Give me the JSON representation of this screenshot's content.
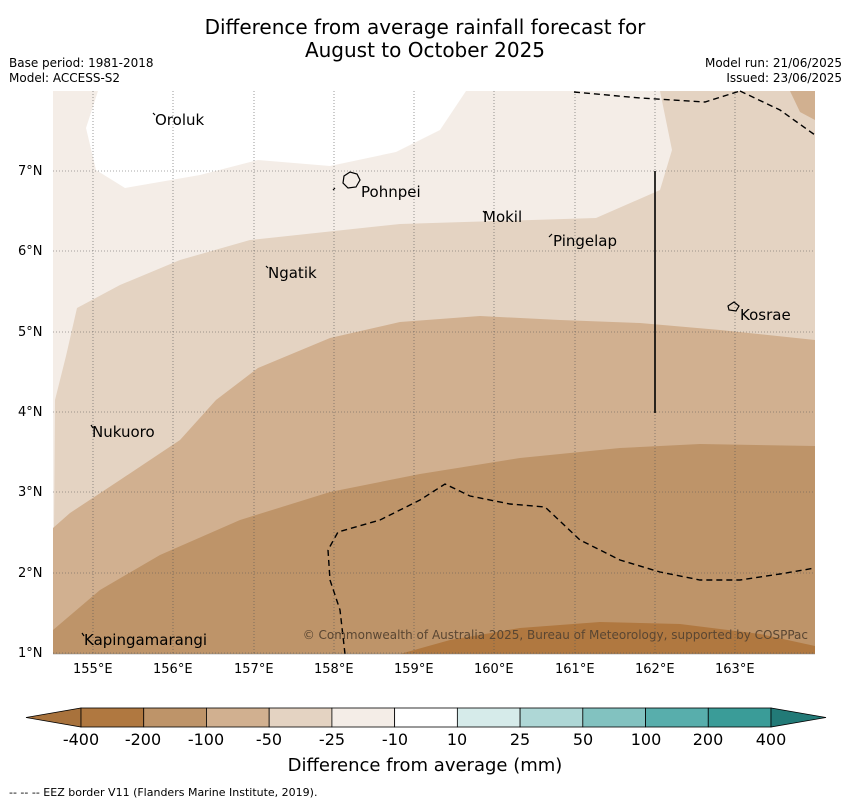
{
  "title": {
    "line1": "Difference from average rainfall forecast for",
    "line2": "August to October 2025"
  },
  "meta": {
    "base_period": "Base period: 1981-2018",
    "model": "Model: ACCESS-S2",
    "model_run": "Model run: 21/06/2025",
    "issued": "Issued: 23/06/2025"
  },
  "places": [
    "Oroluk",
    "Pohnpei",
    "Mokil",
    "Pingelap",
    "Ngatik",
    "Kosrae",
    "Nukuoro",
    "Kapingamarangi"
  ],
  "lat_ticks": [
    "7°N",
    "6°N",
    "5°N",
    "4°N",
    "3°N",
    "2°N",
    "1°N"
  ],
  "lon_ticks": [
    "155°E",
    "156°E",
    "157°E",
    "158°E",
    "159°E",
    "160°E",
    "161°E",
    "162°E",
    "163°E"
  ],
  "copyright": "© Commonwealth of Australia 2025, Bureau of Meteorology, supported by COSPPac",
  "colorbar": {
    "labels": [
      "-400",
      "-200",
      "-100",
      "-50",
      "-25",
      "-10",
      "10",
      "25",
      "50",
      "100",
      "200",
      "400"
    ],
    "colors": [
      "#a8723c",
      "#b07840",
      "#be9469",
      "#d1b090",
      "#e4d3c2",
      "#f4ede7",
      "#ffffff",
      "#d6ebea",
      "#aed7d6",
      "#82c2c0",
      "#58aeac",
      "#3a9c98",
      "#227a77"
    ],
    "title": "Difference from average (mm)"
  },
  "footnote": "-- -- -- EEZ border V11 (Flanders Marine Institute, 2019)."
}
